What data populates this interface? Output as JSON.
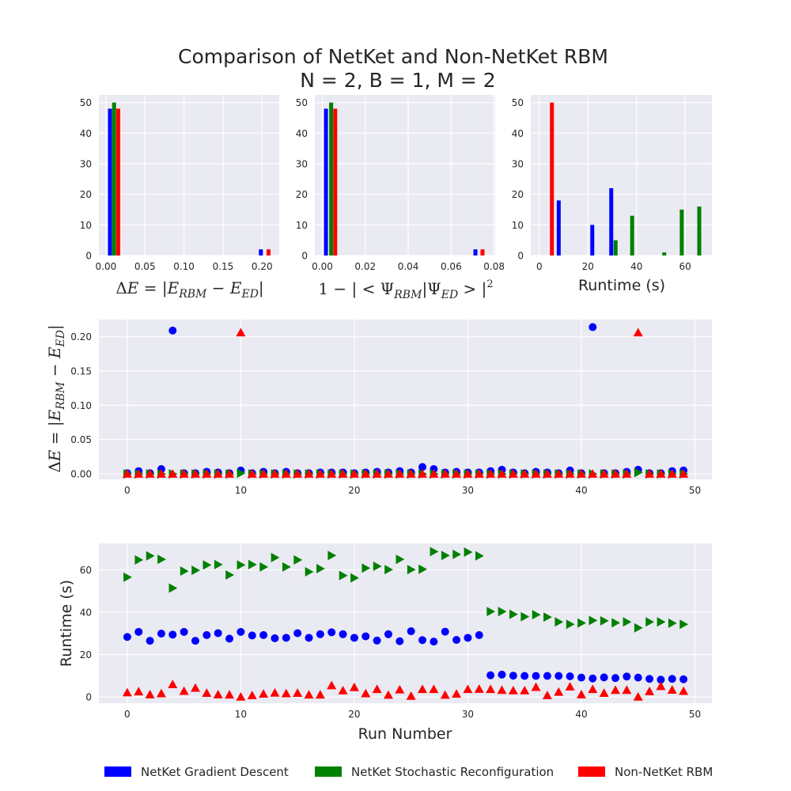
{
  "title": {
    "line1": "Comparison of NetKet and Non-NetKet RBM",
    "line2": "N = 2, B = 1, M = 2"
  },
  "colors": {
    "gd": "#0000ff",
    "sr": "#008000",
    "nn": "#ff0000",
    "axes_bg": "#eaeaf2",
    "grid": "#ffffff",
    "text": "#262626"
  },
  "legend": {
    "placement": "bottom-center",
    "items": [
      {
        "label": "NetKet Gradient Descent",
        "color": "#0000ff"
      },
      {
        "label": "NetKet Stochastic Reconfiguration",
        "color": "#008000"
      },
      {
        "label": "Non-NetKet RBM",
        "color": "#ff0000"
      }
    ]
  },
  "chart_data": [
    {
      "id": "hist_energy",
      "type": "bar",
      "xlabel": "ΔE = |E_RBM − E_ED|",
      "xlim": [
        -0.009,
        0.222
      ],
      "ylim": [
        0,
        52.5
      ],
      "xticks": [
        0.0,
        0.05,
        0.1,
        0.15,
        0.2
      ],
      "xtick_labels": [
        "0.00",
        "0.05",
        "0.10",
        "0.15",
        "0.20"
      ],
      "yticks": [
        0,
        10,
        20,
        30,
        40,
        50
      ],
      "ytick_labels": [
        "0",
        "10",
        "20",
        "30",
        "40",
        "50"
      ],
      "grid": true,
      "series": [
        {
          "key": "gd",
          "bins": [
            {
              "x": 0.0052,
              "value": 48
            },
            {
              "x": 0.1985,
              "value": 2
            }
          ]
        },
        {
          "key": "sr",
          "bins": [
            {
              "x": 0.0105,
              "value": 50
            }
          ]
        },
        {
          "key": "nn",
          "bins": [
            {
              "x": 0.0158,
              "value": 48
            },
            {
              "x": 0.2083,
              "value": 2
            }
          ]
        }
      ]
    },
    {
      "id": "hist_fidelity",
      "type": "bar",
      "xlabel": "1 − |<Ψ_RBM|Ψ_ED>|²",
      "xlim": [
        -0.0035,
        0.0805
      ],
      "ylim": [
        0,
        52.5
      ],
      "xticks": [
        0.0,
        0.02,
        0.04,
        0.06,
        0.08
      ],
      "xtick_labels": [
        "0.00",
        "0.02",
        "0.04",
        "0.06",
        "0.08"
      ],
      "yticks": [
        0,
        10,
        20,
        30,
        40,
        50
      ],
      "ytick_labels": [
        "0",
        "10",
        "20",
        "30",
        "40",
        "50"
      ],
      "grid": true,
      "series": [
        {
          "key": "gd",
          "bins": [
            {
              "x": 0.0017,
              "value": 48
            },
            {
              "x": 0.0713,
              "value": 2
            }
          ]
        },
        {
          "key": "sr",
          "bins": [
            {
              "x": 0.0041,
              "value": 50
            }
          ]
        },
        {
          "key": "nn",
          "bins": [
            {
              "x": 0.006,
              "value": 48
            },
            {
              "x": 0.0746,
              "value": 2
            }
          ]
        }
      ]
    },
    {
      "id": "hist_runtime",
      "type": "bar",
      "xlabel": "Runtime (s)",
      "xlim": [
        -3.5,
        71
      ],
      "ylim": [
        0,
        52.5
      ],
      "xticks": [
        0,
        20,
        40,
        60
      ],
      "xtick_labels": [
        "0",
        "20",
        "40",
        "60"
      ],
      "yticks": [
        0,
        10,
        20,
        30,
        40,
        50
      ],
      "ytick_labels": [
        "0",
        "10",
        "20",
        "30",
        "40",
        "50"
      ],
      "grid": true,
      "series": [
        {
          "key": "nn",
          "bins": [
            {
              "x": 5.2,
              "value": 50
            }
          ]
        },
        {
          "key": "gd",
          "bins": [
            {
              "x": 8.0,
              "value": 18
            },
            {
              "x": 21.8,
              "value": 10
            },
            {
              "x": 29.6,
              "value": 22
            }
          ]
        },
        {
          "key": "sr",
          "bins": [
            {
              "x": 31.4,
              "value": 5
            },
            {
              "x": 38.2,
              "value": 13
            },
            {
              "x": 51.4,
              "value": 1
            },
            {
              "x": 58.6,
              "value": 15
            },
            {
              "x": 65.8,
              "value": 16
            }
          ]
        }
      ]
    },
    {
      "id": "scatter_energy",
      "type": "scatter",
      "ylabel": "ΔE = |E_RBM − E_ED|",
      "xlim": [
        -2.5,
        51.5
      ],
      "ylim": [
        -0.008,
        0.225
      ],
      "xticks": [
        0,
        10,
        20,
        30,
        40,
        50
      ],
      "xtick_labels": [
        "0",
        "10",
        "20",
        "30",
        "40",
        "50"
      ],
      "yticks": [
        0.0,
        0.05,
        0.1,
        0.15,
        0.2
      ],
      "ytick_labels": [
        "0.00",
        "0.05",
        "0.10",
        "0.15",
        "0.20"
      ],
      "grid": true,
      "x": [
        0,
        1,
        2,
        3,
        4,
        5,
        6,
        7,
        8,
        9,
        10,
        11,
        12,
        13,
        14,
        15,
        16,
        17,
        18,
        19,
        20,
        21,
        22,
        23,
        24,
        25,
        26,
        27,
        28,
        29,
        30,
        31,
        32,
        33,
        34,
        35,
        36,
        37,
        38,
        39,
        40,
        41,
        42,
        43,
        44,
        45,
        46,
        47,
        48,
        49
      ],
      "series": [
        {
          "key": "gd",
          "marker": "circle",
          "values": [
            0.001,
            0.004,
            0.001,
            0.007,
            0.209,
            0.001,
            0.001,
            0.003,
            0.002,
            0.001,
            0.005,
            0.001,
            0.003,
            0.001,
            0.003,
            0.001,
            0.001,
            0.002,
            0.002,
            0.002,
            0.001,
            0.002,
            0.003,
            0.002,
            0.004,
            0.002,
            0.01,
            0.007,
            0.002,
            0.003,
            0.002,
            0.002,
            0.004,
            0.006,
            0.002,
            0.001,
            0.003,
            0.002,
            0.001,
            0.005,
            0.001,
            0.214,
            0.001,
            0.001,
            0.003,
            0.006,
            0.001,
            0.001,
            0.004,
            0.005
          ]
        },
        {
          "key": "sr",
          "marker": "triangle-right",
          "values": [
            0.0,
            0.0,
            0.0,
            0.0,
            0.0,
            0.0,
            0.0,
            0.0,
            0.0,
            0.0,
            0.001,
            0.0,
            0.0,
            0.0,
            0.0,
            0.0,
            0.0,
            0.0,
            0.0,
            0.0,
            0.0,
            0.0,
            0.0,
            0.0,
            0.0,
            0.0,
            0.0,
            0.0,
            0.0,
            0.0,
            0.0,
            0.0,
            0.0,
            0.0,
            0.0,
            0.0,
            0.0,
            0.0,
            0.0,
            0.0,
            0.0,
            0.0,
            0.0,
            0.0,
            0.0,
            0.002,
            0.0,
            0.0,
            0.0,
            0.0
          ]
        },
        {
          "key": "nn",
          "marker": "triangle-up",
          "values": [
            0.0,
            0.0,
            0.0,
            0.0,
            0.0,
            0.0,
            0.0,
            0.0,
            0.0,
            0.0,
            0.206,
            0.0,
            0.0,
            0.0,
            0.0,
            0.0,
            0.0,
            0.0,
            0.0,
            0.0,
            0.0,
            0.0,
            0.0,
            0.0,
            0.0,
            0.0,
            0.0,
            0.0,
            0.0,
            0.0,
            0.0,
            0.0,
            0.0,
            0.0,
            0.0,
            0.0,
            0.0,
            0.0,
            0.0,
            0.0,
            0.0,
            0.0,
            0.0,
            0.0,
            0.0,
            0.206,
            0.0,
            0.0,
            0.0,
            0.0
          ]
        }
      ]
    },
    {
      "id": "scatter_runtime",
      "type": "scatter",
      "xlabel": "Run Number",
      "ylabel": "Runtime (s)",
      "xlim": [
        -2.5,
        51.5
      ],
      "ylim": [
        -3,
        72.5
      ],
      "xticks": [
        0,
        10,
        20,
        30,
        40,
        50
      ],
      "xtick_labels": [
        "0",
        "10",
        "20",
        "30",
        "40",
        "50"
      ],
      "yticks": [
        0,
        20,
        40,
        60
      ],
      "ytick_labels": [
        "0",
        "20",
        "40",
        "60"
      ],
      "grid": true,
      "x": [
        0,
        1,
        2,
        3,
        4,
        5,
        6,
        7,
        8,
        9,
        10,
        11,
        12,
        13,
        14,
        15,
        16,
        17,
        18,
        19,
        20,
        21,
        22,
        23,
        24,
        25,
        26,
        27,
        28,
        29,
        30,
        31,
        32,
        33,
        34,
        35,
        36,
        37,
        38,
        39,
        40,
        41,
        42,
        43,
        44,
        45,
        46,
        47,
        48,
        49
      ],
      "series": [
        {
          "key": "gd",
          "marker": "circle",
          "values": [
            28.3,
            30.7,
            26.5,
            29.9,
            29.4,
            30.7,
            26.5,
            29.2,
            30.1,
            27.5,
            30.7,
            29.0,
            29.2,
            27.7,
            27.9,
            30.1,
            27.9,
            29.6,
            30.5,
            29.6,
            27.9,
            28.6,
            26.6,
            29.6,
            26.3,
            31.0,
            26.8,
            26.1,
            30.8,
            26.9,
            27.9,
            29.2,
            10.2,
            10.5,
            10.0,
            9.9,
            9.9,
            9.9,
            9.9,
            9.7,
            9.1,
            8.7,
            9.2,
            8.9,
            9.6,
            9.1,
            8.5,
            8.1,
            8.5,
            8.3
          ]
        },
        {
          "key": "sr",
          "marker": "triangle-right",
          "values": [
            56.5,
            64.7,
            66.6,
            65.0,
            51.4,
            59.4,
            59.8,
            62.3,
            62.5,
            57.6,
            62.3,
            62.5,
            61.4,
            65.8,
            61.4,
            64.7,
            59.1,
            60.6,
            66.8,
            57.3,
            56.2,
            60.8,
            61.7,
            60.1,
            65.0,
            60.1,
            60.3,
            68.6,
            66.8,
            67.3,
            68.4,
            66.6,
            40.3,
            40.3,
            39.0,
            37.9,
            38.8,
            37.7,
            35.4,
            34.3,
            34.9,
            36.1,
            35.9,
            35.0,
            35.4,
            32.6,
            35.4,
            35.4,
            34.8,
            34.3
          ]
        },
        {
          "key": "nn",
          "marker": "triangle-up",
          "values": [
            2.0,
            2.5,
            1.1,
            1.6,
            5.9,
            2.7,
            4.2,
            1.8,
            1.1,
            1.0,
            0.0,
            0.7,
            1.4,
            1.9,
            1.6,
            1.8,
            1.0,
            1.0,
            5.4,
            3.0,
            4.5,
            1.6,
            3.6,
            0.9,
            3.4,
            0.4,
            3.6,
            3.6,
            0.9,
            1.4,
            3.6,
            3.7,
            3.6,
            3.2,
            3.0,
            3.0,
            4.6,
            0.7,
            2.3,
            4.8,
            1.1,
            3.6,
            1.8,
            3.2,
            3.2,
            0.0,
            2.6,
            5.0,
            3.3,
            2.7
          ]
        }
      ]
    }
  ]
}
